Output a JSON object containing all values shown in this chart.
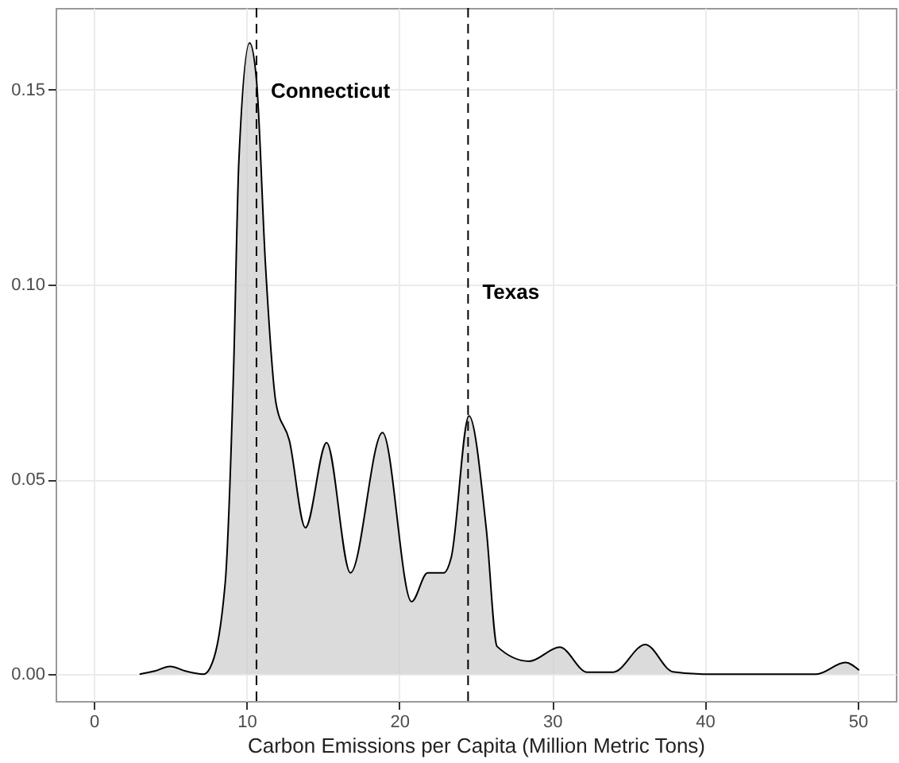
{
  "chart_data": {
    "type": "area",
    "xlabel": "Carbon Emissions per Capita (Million Metric Tons)",
    "x": [
      3.0,
      4.0,
      5.0,
      6.0,
      7.2,
      7.6,
      8.6,
      9.15,
      9.5,
      10.2,
      10.65,
      11.24,
      11.93,
      12.8,
      13.85,
      15.24,
      16.8,
      18.9,
      20.8,
      21.85,
      22.9,
      23.4,
      24.56,
      25.7,
      26.4,
      28.5,
      30.5,
      32.3,
      34.0,
      36.1,
      37.9,
      39.9,
      47.3,
      49.2,
      50.1
    ],
    "series": [
      {
        "color": "#cccccc",
        "values": [
          0,
          0.0008,
          0.002,
          0.0008,
          0,
          0.0015,
          0.0233,
          0.078,
          0.132,
          0.162,
          0.1525,
          0.105,
          0.0695,
          0.06,
          0.0376,
          0.0594,
          0.026,
          0.062,
          0.0186,
          0.026,
          0.026,
          0.03,
          0.0663,
          0.037,
          0.0071,
          0.0033,
          0.0069,
          0.0005,
          0.0005,
          0.0076,
          0.0006,
          0,
          0,
          0.003,
          0.001
        ]
      }
    ],
    "xlim": [
      -2.5,
      52.5
    ],
    "xticks": [
      0,
      10,
      20,
      30,
      40,
      50
    ],
    "ylim": [
      -0.0069,
      0.171
    ],
    "yticks": [
      {
        "value": 0,
        "label": "0.00"
      },
      {
        "value": 0.05,
        "label": "0.05"
      },
      {
        "value": 0.1,
        "label": "0.10"
      },
      {
        "value": 0.15,
        "label": "0.15"
      }
    ],
    "grid": true,
    "ref_lines": [
      {
        "axis": "x",
        "value": 10.65,
        "line_style": "dashed",
        "label": "Connecticut"
      },
      {
        "axis": "x",
        "value": 24.5,
        "line_style": "dashed",
        "label": "Texas"
      }
    ]
  }
}
